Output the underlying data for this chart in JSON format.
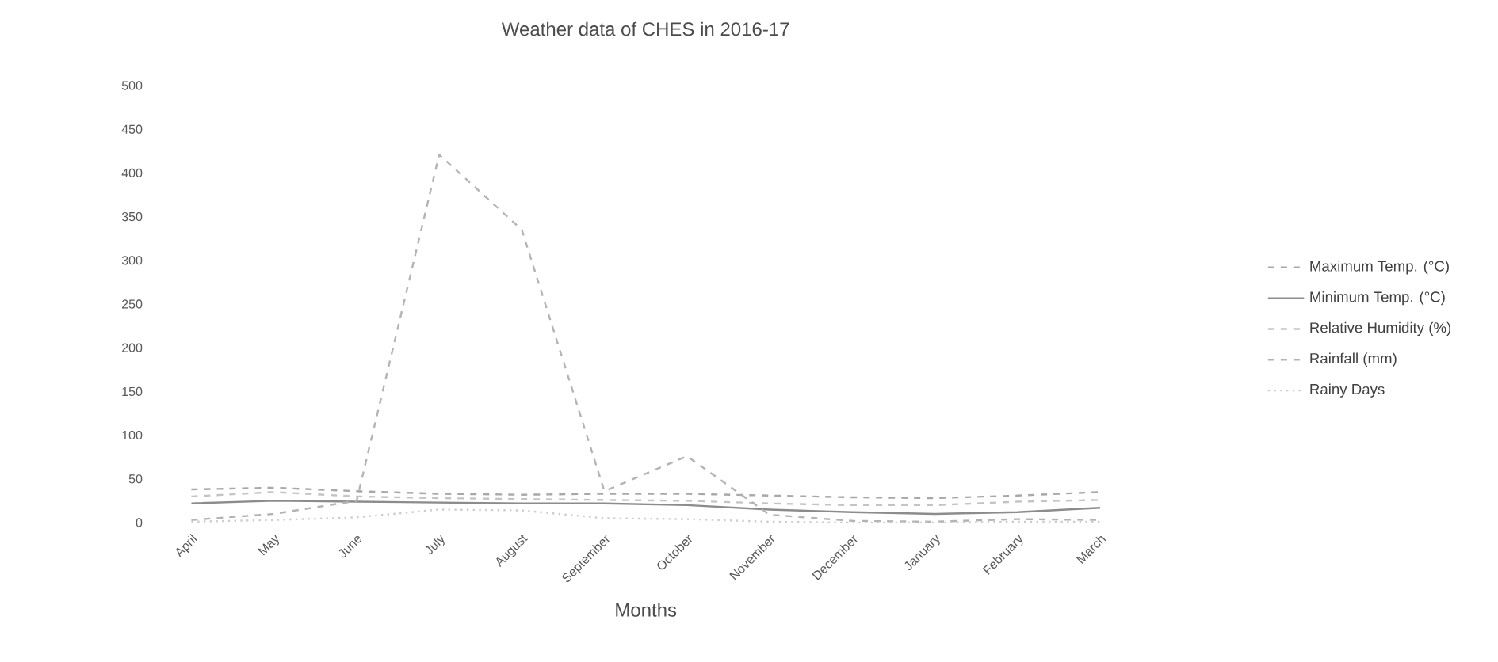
{
  "chart_data": {
    "type": "line",
    "title": "Weather data of CHES in 2016-17",
    "xlabel": "Months",
    "categories": [
      "April",
      "May",
      "June",
      "July",
      "August",
      "September",
      "October",
      "November",
      "December",
      "January",
      "February",
      "March"
    ],
    "series": [
      {
        "name": "Maximum Temp. (°C)",
        "color": "#a8a8a8",
        "line_style": "dashed",
        "values": [
          38,
          40,
          36,
          33,
          32,
          33,
          33,
          31,
          29,
          28,
          31,
          35
        ]
      },
      {
        "name": "Minimum Temp. (°C)",
        "color": "#8c8c8c",
        "line_style": "solid",
        "values": [
          22,
          25,
          24,
          23,
          22,
          22,
          20,
          15,
          12,
          10,
          12,
          17
        ]
      },
      {
        "name": "Relative Humidity (%)",
        "color": "#c4c4c4",
        "line_style": "dashed",
        "values": [
          30,
          35,
          30,
          28,
          27,
          26,
          25,
          22,
          20,
          20,
          24,
          26
        ]
      },
      {
        "name": "Rainfall (mm)",
        "color": "#b4b4b4",
        "line_style": "dashed",
        "values": [
          3,
          10,
          25,
          421,
          335,
          36,
          76,
          9,
          2,
          1,
          4,
          3
        ]
      },
      {
        "name": "Rainy Days",
        "color": "#cccccc",
        "line_style": "dotted",
        "values": [
          1,
          3,
          6,
          15,
          14,
          5,
          4,
          1,
          0,
          0,
          1,
          1
        ]
      }
    ],
    "ylim": [
      0,
      500
    ],
    "yticks": [
      0,
      50,
      100,
      150,
      200,
      250,
      300,
      350,
      400,
      450,
      500
    ],
    "legend": "right",
    "marker": "none"
  }
}
